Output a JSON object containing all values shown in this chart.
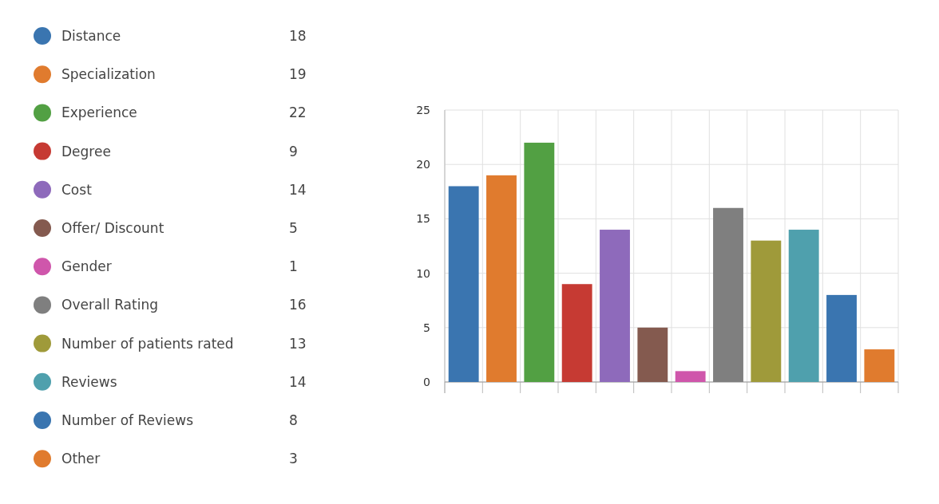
{
  "chart_data": {
    "type": "bar",
    "categories": [
      null,
      null,
      null,
      null,
      null,
      null,
      null,
      null,
      null,
      null,
      null,
      null
    ],
    "series": [
      {
        "name": "Distance",
        "color": "#3a75b0",
        "values": [
          18,
          null,
          null,
          null,
          null,
          null,
          null,
          null,
          null,
          null,
          null,
          null
        ]
      },
      {
        "name": "Specialization",
        "color": "#e07b2e",
        "values": [
          null,
          19,
          null,
          null,
          null,
          null,
          null,
          null,
          null,
          null,
          null,
          null
        ]
      },
      {
        "name": "Experience",
        "color": "#52a043",
        "values": [
          null,
          null,
          22,
          null,
          null,
          null,
          null,
          null,
          null,
          null,
          null,
          null
        ]
      },
      {
        "name": "Degree",
        "color": "#c63a33",
        "values": [
          null,
          null,
          null,
          9,
          null,
          null,
          null,
          null,
          null,
          null,
          null,
          null
        ]
      },
      {
        "name": "Cost",
        "color": "#8e6abb",
        "values": [
          null,
          null,
          null,
          null,
          14,
          null,
          null,
          null,
          null,
          null,
          null,
          null
        ]
      },
      {
        "name": "Offer/ Discount",
        "color": "#845a4f",
        "values": [
          null,
          null,
          null,
          null,
          null,
          5,
          null,
          null,
          null,
          null,
          null,
          null
        ]
      },
      {
        "name": "Gender",
        "color": "#cf56ab",
        "values": [
          null,
          null,
          null,
          null,
          null,
          null,
          1,
          null,
          null,
          null,
          null,
          null
        ]
      },
      {
        "name": "Overall Rating",
        "color": "#7f7f7f",
        "values": [
          null,
          null,
          null,
          null,
          null,
          null,
          null,
          16,
          null,
          null,
          null,
          null
        ]
      },
      {
        "name": "Number of patients rated",
        "color": "#9f9a3a",
        "values": [
          null,
          null,
          null,
          null,
          null,
          null,
          null,
          null,
          13,
          null,
          null,
          null
        ]
      },
      {
        "name": "Reviews",
        "color": "#4fa0ad",
        "values": [
          null,
          null,
          null,
          null,
          null,
          null,
          null,
          null,
          null,
          14,
          null,
          null
        ]
      },
      {
        "name": "Number of Reviews",
        "color": "#3a75b0",
        "values": [
          null,
          null,
          null,
          null,
          null,
          null,
          null,
          null,
          null,
          null,
          8,
          null
        ]
      },
      {
        "name": "Other",
        "color": "#e07b2e",
        "values": [
          null,
          null,
          null,
          null,
          null,
          null,
          null,
          null,
          null,
          null,
          null,
          3
        ]
      }
    ],
    "ylim": [
      0,
      25
    ],
    "yticks": [
      0,
      5,
      10,
      15,
      20,
      25
    ],
    "annotations": [
      "18",
      "19",
      "22",
      "9",
      "14",
      "5",
      "1",
      "16",
      "13",
      "14",
      "8",
      "3"
    ],
    "grid": true,
    "legend": "left"
  }
}
